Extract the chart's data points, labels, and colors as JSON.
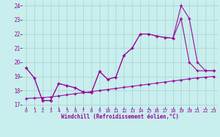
{
  "bg_color": "#c8eeee",
  "line_color": "#990099",
  "grid_color": "#aacccc",
  "xlabel": "Windchill (Refroidissement éolien,°C)",
  "xlim": [
    -0.5,
    23.5
  ],
  "ylim": [
    16.85,
    24.3
  ],
  "xticks": [
    0,
    1,
    2,
    3,
    4,
    5,
    6,
    7,
    8,
    9,
    10,
    11,
    12,
    13,
    14,
    15,
    16,
    17,
    18,
    19,
    20,
    21,
    22,
    23
  ],
  "yticks": [
    17,
    18,
    19,
    20,
    21,
    22,
    23,
    24
  ],
  "line1_x": [
    0,
    1,
    2,
    3,
    4,
    5,
    6,
    7,
    8,
    9,
    10,
    11,
    12,
    13,
    14,
    15,
    16,
    17,
    18,
    19,
    20,
    21,
    22,
    23
  ],
  "line1_y": [
    19.6,
    18.9,
    17.3,
    17.3,
    18.5,
    18.35,
    18.2,
    17.9,
    17.85,
    19.35,
    18.8,
    18.95,
    20.5,
    21.0,
    22.0,
    22.0,
    21.85,
    21.75,
    21.7,
    24.0,
    23.1,
    20.0,
    19.4,
    19.4
  ],
  "line2_x": [
    0,
    1,
    2,
    3,
    4,
    5,
    6,
    7,
    8,
    9,
    10,
    11,
    12,
    13,
    14,
    15,
    16,
    17,
    18,
    19,
    20,
    21,
    22,
    23
  ],
  "line2_y": [
    19.6,
    18.9,
    17.3,
    17.3,
    18.5,
    18.35,
    18.2,
    17.9,
    17.85,
    19.35,
    18.8,
    18.95,
    20.5,
    21.0,
    22.0,
    22.0,
    21.85,
    21.75,
    21.7,
    23.1,
    20.0,
    19.4,
    19.4,
    19.4
  ],
  "line3_x": [
    0,
    1,
    2,
    3,
    4,
    5,
    6,
    7,
    8,
    9,
    10,
    11,
    12,
    13,
    14,
    15,
    16,
    17,
    18,
    19,
    20,
    21,
    22,
    23
  ],
  "line3_y": [
    17.45,
    17.47,
    17.5,
    17.55,
    17.62,
    17.7,
    17.78,
    17.85,
    17.93,
    18.0,
    18.08,
    18.15,
    18.23,
    18.3,
    18.38,
    18.45,
    18.53,
    18.6,
    18.68,
    18.75,
    18.83,
    18.9,
    18.95,
    19.0
  ]
}
